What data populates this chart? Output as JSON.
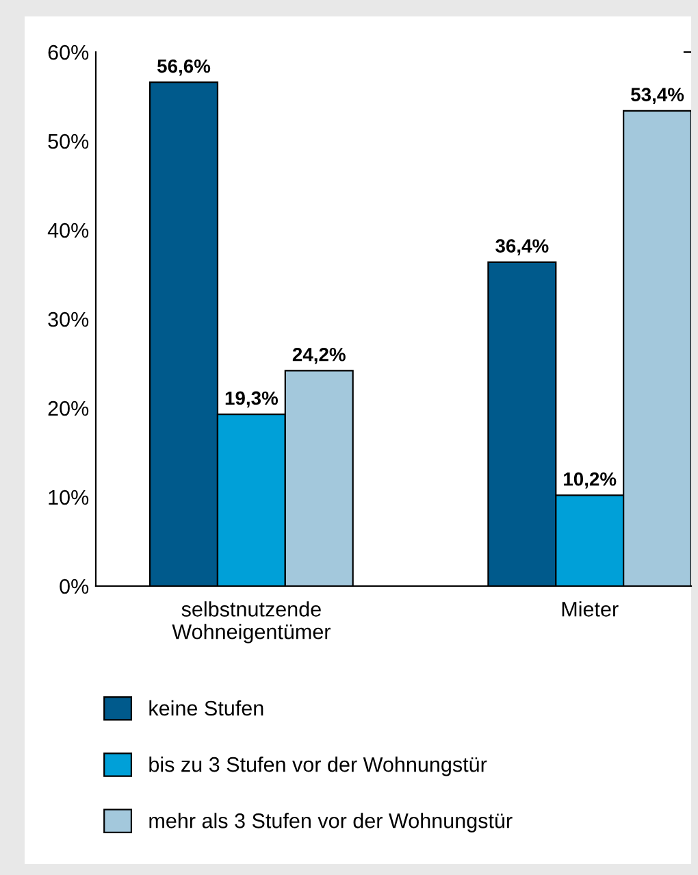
{
  "chart_data": {
    "type": "bar",
    "categories": [
      "selbstnutzende\nWohneigentümer",
      "Mieter"
    ],
    "series": [
      {
        "name": "keine Stufen",
        "color": "#005a8c",
        "values": [
          56.6,
          36.4
        ],
        "value_labels": [
          "56,6%",
          "36,4%"
        ]
      },
      {
        "name": "bis zu 3 Stufen vor der Wohnungstür",
        "color": "#00a0d8",
        "values": [
          19.3,
          10.2
        ],
        "value_labels": [
          "19,3%",
          "10,2%"
        ]
      },
      {
        "name": "mehr als 3 Stufen vor der Wohnungstür",
        "color": "#a3c8dc",
        "values": [
          24.2,
          53.4
        ],
        "value_labels": [
          "24,2%",
          "53,4%"
        ]
      }
    ],
    "ylim": [
      0,
      60
    ],
    "yticks": [
      {
        "value": 0,
        "label": "0%"
      },
      {
        "value": 10,
        "label": "10%"
      },
      {
        "value": 20,
        "label": "20%"
      },
      {
        "value": 30,
        "label": "30%"
      },
      {
        "value": 40,
        "label": "40%"
      },
      {
        "value": 50,
        "label": "50%"
      },
      {
        "value": 60,
        "label": "60%"
      }
    ],
    "grid": false,
    "legend": "bottom"
  }
}
